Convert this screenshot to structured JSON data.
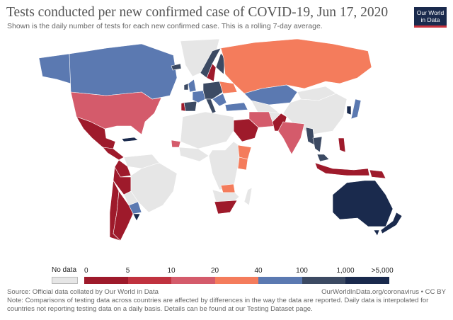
{
  "header": {
    "title": "Tests conducted per new confirmed case of COVID-19, Jun 17, 2020",
    "subtitle": "Shown is the daily number of tests for each new confirmed case. This is a rolling 7-day average.",
    "logo_line1": "Our World",
    "logo_line2": "in Data"
  },
  "colors": {
    "no_data": "#e6e6e6",
    "b0_5": "#9e1a2b",
    "b5_10": "#c0323f",
    "b10_20": "#d45b6b",
    "b20_40": "#f47c5c",
    "b40_100": "#5b79b1",
    "b100_1000": "#3c4a63",
    "b1000_5000": "#1a2a4d"
  },
  "legend": {
    "no_data_label": "No data",
    "ticks": [
      "0",
      "5",
      "10",
      "20",
      "40",
      "100",
      "1,000",
      ">5,000"
    ]
  },
  "footer": {
    "source": "Source: Official data collated by Our World in Data",
    "url": "OurWorldInData.org/coronavirus • CC BY",
    "note_line1": "Note: Comparisons of testing data across countries are affected by differences in the way the data are reported. Daily data is interpolated for",
    "note_line2": "countries not reporting testing data on a daily basis. Details can be found at our Testing Dataset page."
  }
}
